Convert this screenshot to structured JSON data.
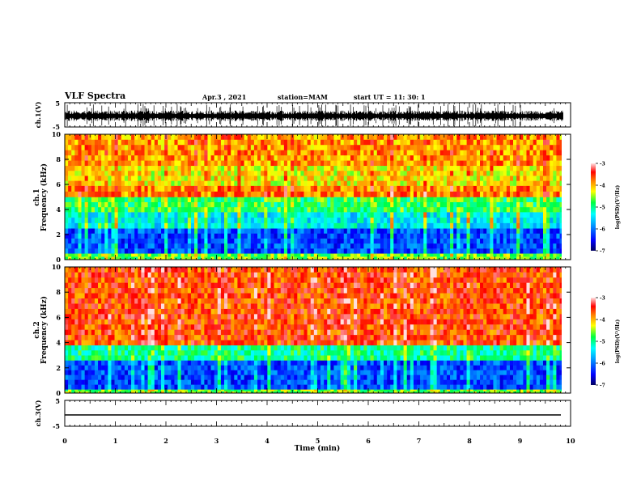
{
  "header": {
    "title": "VLF Spectra",
    "date": "Apr.3 , 2021",
    "station": "station=MAM",
    "start_ut": "start UT = 11: 30: 1"
  },
  "chart_data": [
    {
      "type": "line",
      "panel": "ch1-waveform",
      "ylabel": "ch.1(V)",
      "ylim": [
        -5,
        5
      ],
      "y_ticks": [
        "5",
        "-5"
      ],
      "description_values": "dense impulsive waveform spanning roughly -5 to 5 V"
    },
    {
      "type": "heatmap",
      "panel": "ch1-spectrogram",
      "ylabel": "ch.1 Frequency (kHz)",
      "ylim": [
        0,
        10
      ],
      "y_ticks": [
        "0",
        "2",
        "4",
        "6",
        "8",
        "10"
      ],
      "xlim": [
        0,
        9.85
      ],
      "band_levels": [
        {
          "from_khz": 0,
          "to_khz": 0.5,
          "log_psd": -4.6
        },
        {
          "from_khz": 0.5,
          "to_khz": 2.5,
          "log_psd": -6.2
        },
        {
          "from_khz": 2.5,
          "to_khz": 3.8,
          "log_psd": -5.4
        },
        {
          "from_khz": 3.8,
          "to_khz": 5.0,
          "log_psd": -4.8
        },
        {
          "from_khz": 5.0,
          "to_khz": 5.9,
          "log_psd": -3.8
        },
        {
          "from_khz": 5.9,
          "to_khz": 7.5,
          "log_psd": -4.2
        },
        {
          "from_khz": 7.5,
          "to_khz": 10,
          "log_psd": -3.9
        }
      ],
      "colorbar": {
        "label": "log(PSD)(V²/Hz)",
        "range": [
          -7,
          -3
        ],
        "ticks": [
          "-3",
          "-4",
          "-5",
          "-6",
          "-7"
        ]
      }
    },
    {
      "type": "heatmap",
      "panel": "ch2-spectrogram",
      "ylabel": "ch.2 Frequency (kHz)",
      "ylim": [
        0,
        10
      ],
      "y_ticks": [
        "0",
        "2",
        "4",
        "6",
        "8",
        "10"
      ],
      "xlim": [
        0,
        9.85
      ],
      "band_levels": [
        {
          "from_khz": 0,
          "to_khz": 0.3,
          "log_psd": -4.6
        },
        {
          "from_khz": 0.3,
          "to_khz": 2.6,
          "log_psd": -6.2
        },
        {
          "from_khz": 2.6,
          "to_khz": 3.8,
          "log_psd": -5.0
        },
        {
          "from_khz": 3.8,
          "to_khz": 10,
          "log_psd": -3.6
        }
      ],
      "colorbar": {
        "label": "log(PSD)(V²/Hz)",
        "range": [
          -7,
          -3
        ],
        "ticks": [
          "-3",
          "-4",
          "-5",
          "-6",
          "-7"
        ]
      }
    },
    {
      "type": "line",
      "panel": "ch3-waveform",
      "ylabel": "ch.3(V)",
      "ylim": [
        -5,
        5
      ],
      "y_ticks": [
        "5",
        "-5"
      ],
      "series": [
        {
          "x": [
            0,
            9.85
          ],
          "y": [
            -1.8,
            -1.8
          ]
        }
      ],
      "xlabel": "Time (min)",
      "xlim": [
        0,
        10
      ],
      "x_ticks": [
        "0",
        "1",
        "2",
        "3",
        "4",
        "5",
        "6",
        "7",
        "8",
        "9",
        "10"
      ]
    }
  ],
  "colors": {
    "axis": "#000000",
    "background": "#ffffff",
    "colormap": [
      "#000080",
      "#0000ff",
      "#00a0ff",
      "#00ffff",
      "#00ff40",
      "#ffff00",
      "#ff8000",
      "#ff0000",
      "#ffffff"
    ]
  }
}
